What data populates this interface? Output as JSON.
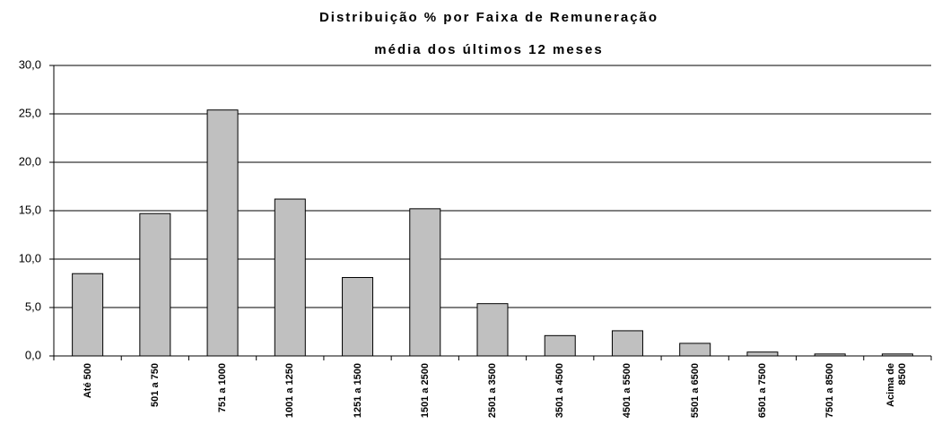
{
  "chart_data": {
    "type": "bar",
    "title": "Distribuição % por Faixa de Remuneração",
    "subtitle": "média dos últimos 12 meses",
    "categories": [
      "Até 500",
      "501 a 750",
      "751 a 1000",
      "1001 a 1250",
      "1251 a 1500",
      "1501 a 2500",
      "2501 a 3500",
      "3501 a 4500",
      "4501 a 5500",
      "5501 a 6500",
      "6501 a 7500",
      "7501 a 8500",
      "Acima de\n8500"
    ],
    "values": [
      8.5,
      14.7,
      25.4,
      16.2,
      8.1,
      15.2,
      5.4,
      2.1,
      2.6,
      1.3,
      0.4,
      0.2,
      0.2
    ],
    "color": "#c0c0c0",
    "ylim": [
      0,
      30
    ],
    "yticks": [
      {
        "value": 0,
        "label": "0,0"
      },
      {
        "value": 5,
        "label": "5,0"
      },
      {
        "value": 10,
        "label": "10,0"
      },
      {
        "value": 15,
        "label": "15,0"
      },
      {
        "value": 20,
        "label": "20,0"
      },
      {
        "value": 25,
        "label": "25,0"
      },
      {
        "value": 30,
        "label": "30,0"
      }
    ],
    "grid": true
  }
}
